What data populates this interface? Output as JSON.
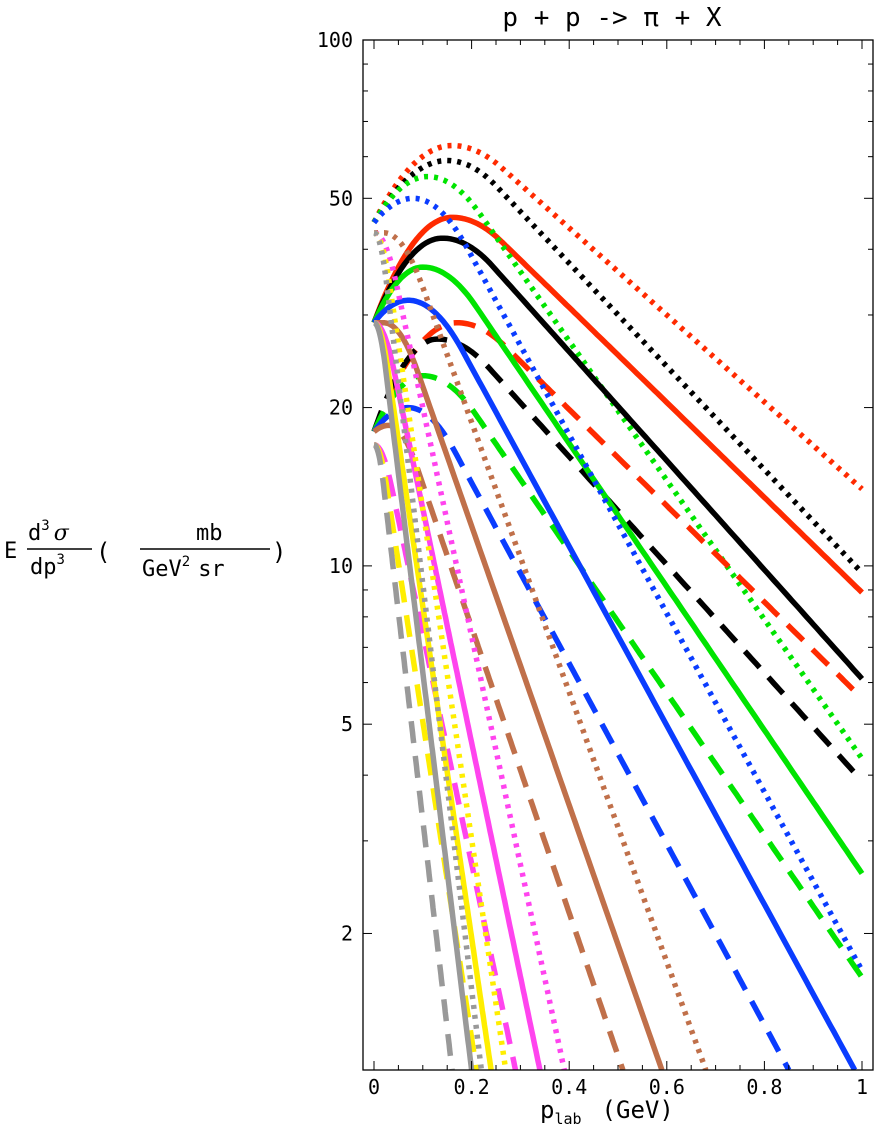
{
  "chart_data": {
    "type": "line",
    "title": "p + p -> π + X",
    "xlabel": "p",
    "xlabel_sub": "lab",
    "xlabel_unit": "(GeV)",
    "ylabel": {
      "prefix": "E",
      "num": "d",
      "num_sup": "3",
      "num_sym": "σ",
      "den": "dp",
      "den_sup": "3",
      "open": "(",
      "unit_num": "mb",
      "unit_den_a": "GeV",
      "unit_den_sup": "2",
      "unit_den_b": "sr",
      "close": ")"
    },
    "x_scale": "linear",
    "y_scale": "log",
    "xlim": [
      0,
      1.02
    ],
    "ylim": [
      1.1,
      100
    ],
    "x_ticks": [
      {
        "value": 0,
        "label": "0"
      },
      {
        "value": 0.2,
        "label": "0.2"
      },
      {
        "value": 0.4,
        "label": "0.4"
      },
      {
        "value": 0.6,
        "label": "0.6"
      },
      {
        "value": 0.8,
        "label": "0.8"
      },
      {
        "value": 1,
        "label": "1"
      }
    ],
    "y_ticks": [
      {
        "value": 100,
        "label": "100"
      },
      {
        "value": 50,
        "label": "50"
      },
      {
        "value": 20,
        "label": "20"
      },
      {
        "value": 10,
        "label": "10"
      },
      {
        "value": 5,
        "label": "5"
      },
      {
        "value": 2,
        "label": "2"
      }
    ],
    "grid": false,
    "colors": {
      "red": "#ff2a00",
      "black": "#000000",
      "green": "#00e400",
      "blue": "#0a3cff",
      "brown": "#c0704a",
      "magenta": "#ff44ee",
      "yellow": "#ffee00",
      "gray": "#999999"
    },
    "series": [
      {
        "color": "red",
        "style": "dotted",
        "y0": 45,
        "peak_x": 0.16,
        "peak_y": 63,
        "y_end": 14,
        "x_end": 1.0
      },
      {
        "color": "black",
        "style": "dotted",
        "y0": 45,
        "peak_x": 0.15,
        "peak_y": 59,
        "y_end": 9.7,
        "x_end": 1.0
      },
      {
        "color": "red",
        "style": "solid",
        "y0": 29,
        "peak_x": 0.16,
        "peak_y": 46,
        "y_end": 8.9,
        "x_end": 1.0
      },
      {
        "color": "green",
        "style": "dotted",
        "y0": 45,
        "peak_x": 0.11,
        "peak_y": 55,
        "y_end": 4.3,
        "x_end": 1.0
      },
      {
        "color": "black",
        "style": "solid",
        "y0": 29,
        "peak_x": 0.14,
        "peak_y": 42,
        "y_end": 6.1,
        "x_end": 1.0
      },
      {
        "color": "red",
        "style": "dashed",
        "y0": 18,
        "peak_x": 0.17,
        "peak_y": 29,
        "y_end": 5.6,
        "x_end": 1.0
      },
      {
        "color": "black",
        "style": "dashed",
        "y0": 18,
        "peak_x": 0.13,
        "peak_y": 27,
        "y_end": 3.9,
        "x_end": 1.0
      },
      {
        "color": "green",
        "style": "solid",
        "y0": 29,
        "peak_x": 0.1,
        "peak_y": 37,
        "y_end": 2.6,
        "x_end": 1.0
      },
      {
        "color": "blue",
        "style": "dotted",
        "y0": 45,
        "peak_x": 0.08,
        "peak_y": 50,
        "y_end": 1.7,
        "x_end": 1.0
      },
      {
        "color": "green",
        "style": "dashed",
        "y0": 18,
        "peak_x": 0.1,
        "peak_y": 23,
        "y_end": 1.65,
        "x_end": 1.0
      },
      {
        "color": "blue",
        "style": "solid",
        "y0": 29,
        "peak_x": 0.07,
        "peak_y": 32,
        "y_end": 1.1,
        "x_end": 0.985
      },
      {
        "color": "blue",
        "style": "dashed",
        "y0": 18,
        "peak_x": 0.07,
        "peak_y": 20,
        "y_end": 1.1,
        "x_end": 0.85
      },
      {
        "color": "brown",
        "style": "dotted",
        "y0": 43,
        "peak_x": 0.02,
        "peak_y": 43,
        "y_end": 1.1,
        "x_end": 0.68
      },
      {
        "color": "brown",
        "style": "solid",
        "y0": 29,
        "peak_x": 0.02,
        "peak_y": 29,
        "y_end": 1.1,
        "x_end": 0.59
      },
      {
        "color": "brown",
        "style": "dashed",
        "y0": 18,
        "peak_x": 0.03,
        "peak_y": 18.5,
        "y_end": 1.1,
        "x_end": 0.51
      },
      {
        "color": "magenta",
        "style": "dotted",
        "y0": 43,
        "peak_x": 0.0,
        "peak_y": 43,
        "y_end": 1.1,
        "x_end": 0.39
      },
      {
        "color": "magenta",
        "style": "solid",
        "y0": 29,
        "peak_x": 0.0,
        "peak_y": 29,
        "y_end": 1.1,
        "x_end": 0.34
      },
      {
        "color": "magenta",
        "style": "dashed",
        "y0": 17,
        "peak_x": 0.0,
        "peak_y": 17,
        "y_end": 1.1,
        "x_end": 0.29
      },
      {
        "color": "yellow",
        "style": "dotted",
        "y0": 43,
        "peak_x": 0.0,
        "peak_y": 43,
        "y_end": 1.1,
        "x_end": 0.27
      },
      {
        "color": "yellow",
        "style": "solid",
        "y0": 29,
        "peak_x": 0.0,
        "peak_y": 29,
        "y_end": 1.1,
        "x_end": 0.24
      },
      {
        "color": "yellow",
        "style": "dashed",
        "y0": 17,
        "peak_x": 0.0,
        "peak_y": 17,
        "y_end": 1.1,
        "x_end": 0.21
      },
      {
        "color": "gray",
        "style": "dotted",
        "y0": 43,
        "peak_x": 0.0,
        "peak_y": 43,
        "y_end": 1.1,
        "x_end": 0.22
      },
      {
        "color": "gray",
        "style": "solid",
        "y0": 29,
        "peak_x": 0.0,
        "peak_y": 29,
        "y_end": 1.1,
        "x_end": 0.2
      },
      {
        "color": "gray",
        "style": "dashed",
        "y0": 17,
        "peak_x": 0.0,
        "peak_y": 17,
        "y_end": 1.1,
        "x_end": 0.16
      }
    ]
  }
}
